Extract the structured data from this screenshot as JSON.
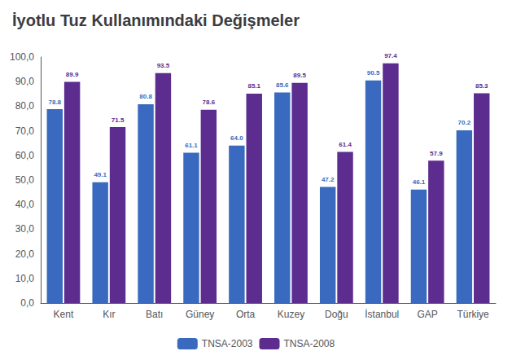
{
  "chart_data": {
    "type": "bar",
    "title": "İyotlu Tuz Kullanımındaki Değişmeler",
    "categories": [
      "Kent",
      "Kır",
      "Batı",
      "Güney",
      "Orta",
      "Kuzey",
      "Doğu",
      "İstanbul",
      "GAP",
      "Türkiye"
    ],
    "series": [
      {
        "name": "TNSA-2003",
        "color": "#3a6abf",
        "values": [
          78.8,
          49.1,
          80.8,
          61.1,
          64.0,
          85.6,
          47.2,
          90.5,
          46.1,
          70.2
        ],
        "value_labels": [
          "78.8",
          "49.1",
          "80.8",
          "61.1",
          "64.0",
          "85.6",
          "47.2",
          "90.5",
          "46.1",
          "70.2"
        ]
      },
      {
        "name": "TNSA-2008",
        "color": "#5c2d8e",
        "values": [
          89.9,
          71.5,
          93.5,
          78.6,
          85.1,
          89.5,
          61.4,
          97.4,
          57.9,
          85.3
        ],
        "value_labels": [
          "89.9",
          "71.5",
          "93.5",
          "78.6",
          "85.1",
          "89.5",
          "61.4",
          "97.4",
          "57.9",
          "85.3"
        ]
      }
    ],
    "ylim": [
      0,
      100
    ],
    "yticks": [
      {
        "value": 0,
        "label": "0,0"
      },
      {
        "value": 10,
        "label": "10,0"
      },
      {
        "value": 20,
        "label": "20,0"
      },
      {
        "value": 30,
        "label": "30,0"
      },
      {
        "value": 40,
        "label": "40,0"
      },
      {
        "value": 50,
        "label": "50,0"
      },
      {
        "value": 60,
        "label": "60,0"
      },
      {
        "value": 70,
        "label": "70,0"
      },
      {
        "value": 80,
        "label": "80,0"
      },
      {
        "value": 90,
        "label": "90,0"
      },
      {
        "value": 100,
        "label": "100,0"
      }
    ],
    "grid": false,
    "legend": "bottom",
    "data_labels": true
  }
}
